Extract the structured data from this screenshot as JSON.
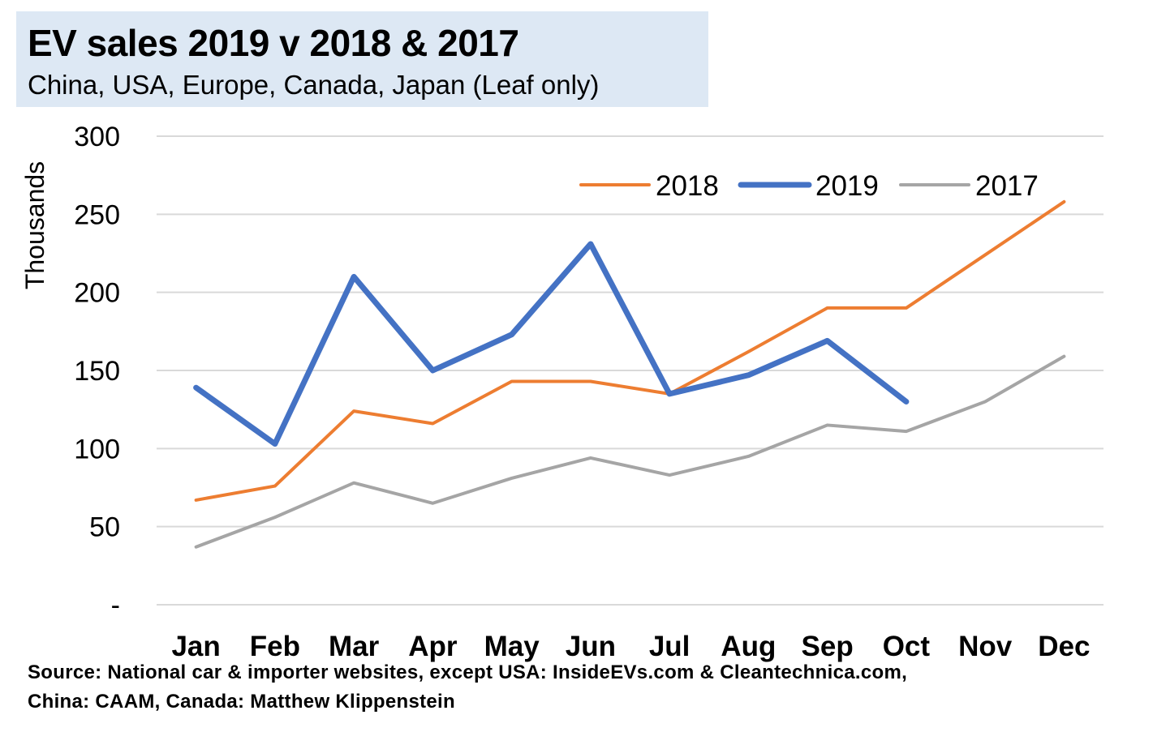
{
  "chart_data": {
    "type": "line",
    "title": "EV sales 2019 v 2018 & 2017",
    "subtitle": "China, USA, Europe, Canada, Japan (Leaf only)",
    "ylabel": "Thousands",
    "xlabel": "",
    "ylim": [
      0,
      300
    ],
    "yticks": [
      0,
      50,
      100,
      150,
      200,
      250,
      300
    ],
    "ytick_labels": [
      "-",
      "50",
      "100",
      "150",
      "200",
      "250",
      "300"
    ],
    "grid": true,
    "legend_position": "top-right",
    "categories": [
      "Jan",
      "Feb",
      "Mar",
      "Apr",
      "May",
      "Jun",
      "Jul",
      "Aug",
      "Sep",
      "Oct",
      "Nov",
      "Dec"
    ],
    "series": [
      {
        "name": "2018",
        "color": "#ed7d31",
        "values": [
          67,
          76,
          124,
          116,
          143,
          143,
          135,
          162,
          190,
          190,
          224,
          258
        ]
      },
      {
        "name": "2019",
        "color": "#4472c4",
        "values": [
          139,
          103,
          210,
          150,
          173,
          231,
          135,
          147,
          169,
          130,
          null,
          null
        ]
      },
      {
        "name": "2017",
        "color": "#a5a5a5",
        "values": [
          37,
          56,
          78,
          65,
          81,
          94,
          83,
          95,
          115,
          111,
          130,
          159
        ]
      }
    ],
    "source_lines": [
      "Source: National car & importer websites, except USA: InsideEVs.com & Cleantechnica.com,",
      "China: CAAM, Canada:  Matthew Klippenstein"
    ]
  }
}
